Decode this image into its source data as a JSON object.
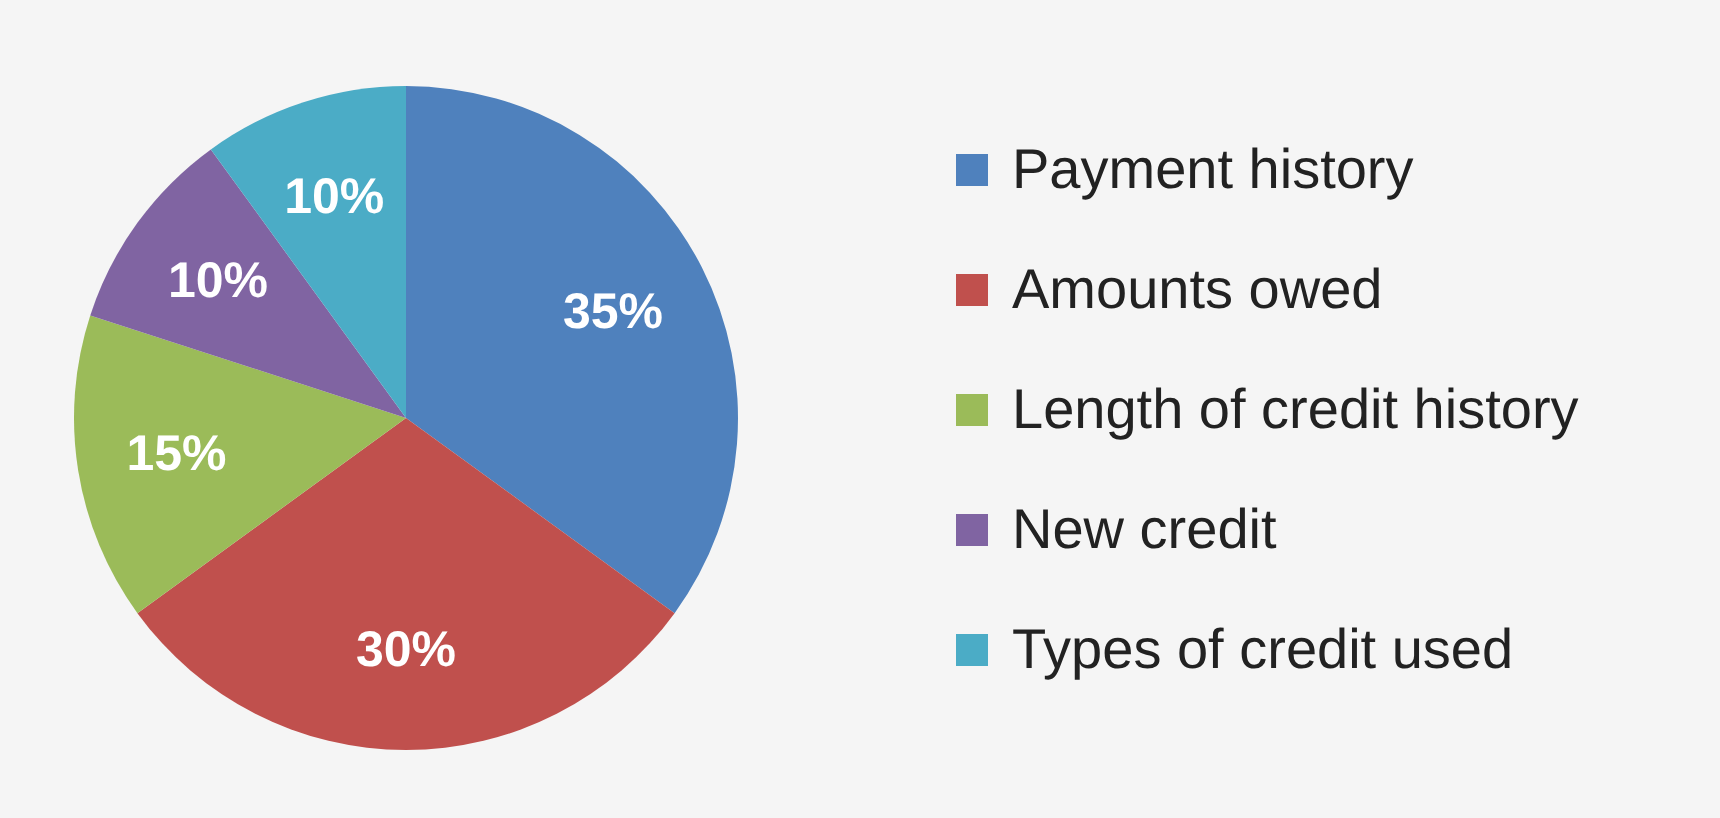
{
  "chart_data": {
    "type": "pie",
    "categories": [
      "Payment history",
      "Amounts owed",
      "Length of credit history",
      "New credit",
      "Types of credit used"
    ],
    "values": [
      35,
      30,
      15,
      10,
      10
    ],
    "colors": [
      "#4f81bd",
      "#c0504d",
      "#9bbb59",
      "#8064a2",
      "#4bacc6"
    ],
    "value_labels": [
      "35%",
      "30%",
      "15%",
      "10%",
      "10%"
    ],
    "legend": "right"
  }
}
